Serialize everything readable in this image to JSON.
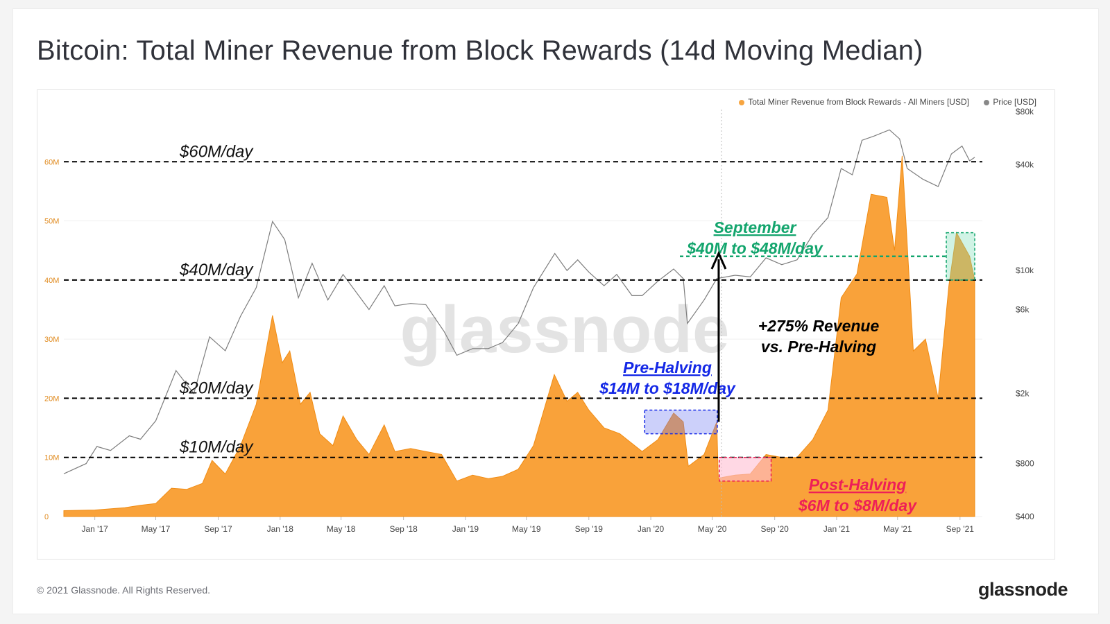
{
  "title": "Bitcoin: Total Miner Revenue from Block Rewards (14d Moving Median)",
  "footer": "© 2021 Glassnode. All Rights Reserved.",
  "brand": "glassnode",
  "watermark": "glassnode",
  "colors": {
    "revenue": "#f7931a",
    "price": "#888888",
    "pre": "#1428e6",
    "post": "#ee1f57",
    "sept": "#13a56d"
  },
  "legend": {
    "revenue": "Total Miner Revenue from Block Rewards - All Miners [USD]",
    "price": "Price [USD]"
  },
  "annotations": {
    "l60": "$60M/day",
    "l40": "$40M/day",
    "l20": "$20M/day",
    "l10": "$10M/day",
    "sept_title": "September",
    "sept_range": "$40M to $48M/day",
    "pre_title": "Pre-Halving",
    "pre_range": "$14M to $18M/day",
    "post_title": "Post-Halving",
    "post_range": "$6M to $8M/day",
    "growth1": "+275% Revenue",
    "growth2": "vs. Pre-Halving"
  },
  "chart_data": {
    "type": "area",
    "x_ticks": [
      "Jan '17",
      "May '17",
      "Sep '17",
      "Jan '18",
      "May '18",
      "Sep '18",
      "Jan '19",
      "May '19",
      "Sep '19",
      "Jan '20",
      "May '20",
      "Sep '20",
      "Jan '21",
      "May '21",
      "Sep '21"
    ],
    "y_left_ticks": [
      "0",
      "10M",
      "20M",
      "30M",
      "40M",
      "50M",
      "60M"
    ],
    "y_right_ticks": [
      "$400",
      "$800",
      "$2k",
      "$6k",
      "$10k",
      "$40k",
      "$80k"
    ],
    "ylim_left": [
      0,
      70000000
    ],
    "y_right_scale": "log",
    "xlim": [
      "2016-11-01",
      "2021-10-15"
    ],
    "reference_lines": [
      60000000,
      40000000,
      20000000,
      10000000
    ],
    "series": [
      {
        "name": "Total Miner Revenue from Block Rewards - All Miners [USD]",
        "axis": "left",
        "points": [
          [
            "2016-11-01",
            1000000
          ],
          [
            "2017-01-01",
            1100000
          ],
          [
            "2017-03-01",
            1500000
          ],
          [
            "2017-04-01",
            1900000
          ],
          [
            "2017-05-01",
            2200000
          ],
          [
            "2017-06-01",
            4800000
          ],
          [
            "2017-07-01",
            4600000
          ],
          [
            "2017-08-01",
            5600000
          ],
          [
            "2017-08-20",
            9500000
          ],
          [
            "2017-09-15",
            7200000
          ],
          [
            "2017-10-15",
            12000000
          ],
          [
            "2017-11-15",
            19000000
          ],
          [
            "2017-12-17",
            34000000
          ],
          [
            "2018-01-05",
            26000000
          ],
          [
            "2018-01-20",
            28000000
          ],
          [
            "2018-02-10",
            19000000
          ],
          [
            "2018-03-01",
            21000000
          ],
          [
            "2018-03-20",
            14000000
          ],
          [
            "2018-04-15",
            12000000
          ],
          [
            "2018-05-05",
            17000000
          ],
          [
            "2018-06-01",
            13000000
          ],
          [
            "2018-06-25",
            10500000
          ],
          [
            "2018-07-25",
            15500000
          ],
          [
            "2018-08-15",
            11000000
          ],
          [
            "2018-09-15",
            11500000
          ],
          [
            "2018-10-15",
            11000000
          ],
          [
            "2018-11-15",
            10500000
          ],
          [
            "2018-12-15",
            6000000
          ],
          [
            "2019-01-15",
            7000000
          ],
          [
            "2019-02-15",
            6400000
          ],
          [
            "2019-03-15",
            6800000
          ],
          [
            "2019-04-15",
            8000000
          ],
          [
            "2019-05-15",
            12000000
          ],
          [
            "2019-06-25",
            24000000
          ],
          [
            "2019-07-20",
            19500000
          ],
          [
            "2019-08-10",
            21000000
          ],
          [
            "2019-09-01",
            18000000
          ],
          [
            "2019-10-01",
            15000000
          ],
          [
            "2019-11-01",
            14000000
          ],
          [
            "2019-12-15",
            11000000
          ],
          [
            "2020-01-15",
            13000000
          ],
          [
            "2020-02-15",
            17500000
          ],
          [
            "2020-03-05",
            16000000
          ],
          [
            "2020-03-15",
            8500000
          ],
          [
            "2020-04-15",
            10500000
          ],
          [
            "2020-05-10",
            16000000
          ],
          [
            "2020-05-13",
            6500000
          ],
          [
            "2020-06-15",
            7000000
          ],
          [
            "2020-07-15",
            7200000
          ],
          [
            "2020-08-15",
            10500000
          ],
          [
            "2020-09-15",
            10000000
          ],
          [
            "2020-10-15",
            10000000
          ],
          [
            "2020-11-15",
            13000000
          ],
          [
            "2020-12-15",
            18000000
          ],
          [
            "2021-01-10",
            37000000
          ],
          [
            "2021-02-10",
            41000000
          ],
          [
            "2021-03-10",
            54500000
          ],
          [
            "2021-04-10",
            54000000
          ],
          [
            "2021-04-25",
            45000000
          ],
          [
            "2021-05-10",
            61000000
          ],
          [
            "2021-06-01",
            28000000
          ],
          [
            "2021-06-25",
            30000000
          ],
          [
            "2021-07-20",
            20000000
          ],
          [
            "2021-08-10",
            39000000
          ],
          [
            "2021-08-25",
            48000000
          ],
          [
            "2021-09-20",
            44000000
          ],
          [
            "2021-09-30",
            40000000
          ]
        ]
      },
      {
        "name": "Price [USD]",
        "axis": "right",
        "points": [
          [
            "2016-11-01",
            700
          ],
          [
            "2016-12-15",
            800
          ],
          [
            "2017-01-05",
            1000
          ],
          [
            "2017-02-01",
            950
          ],
          [
            "2017-03-10",
            1150
          ],
          [
            "2017-04-01",
            1100
          ],
          [
            "2017-05-01",
            1400
          ],
          [
            "2017-06-10",
            2700
          ],
          [
            "2017-07-15",
            2000
          ],
          [
            "2017-08-15",
            4200
          ],
          [
            "2017-09-15",
            3500
          ],
          [
            "2017-10-15",
            5500
          ],
          [
            "2017-11-15",
            8000
          ],
          [
            "2017-12-17",
            19000
          ],
          [
            "2018-01-10",
            15000
          ],
          [
            "2018-02-06",
            7000
          ],
          [
            "2018-03-05",
            11000
          ],
          [
            "2018-04-05",
            6800
          ],
          [
            "2018-05-05",
            9500
          ],
          [
            "2018-06-25",
            6000
          ],
          [
            "2018-07-25",
            8200
          ],
          [
            "2018-08-15",
            6300
          ],
          [
            "2018-09-15",
            6500
          ],
          [
            "2018-10-15",
            6400
          ],
          [
            "2018-11-20",
            4500
          ],
          [
            "2018-12-15",
            3300
          ],
          [
            "2019-01-15",
            3600
          ],
          [
            "2019-02-15",
            3600
          ],
          [
            "2019-03-15",
            3900
          ],
          [
            "2019-04-15",
            5000
          ],
          [
            "2019-05-15",
            8000
          ],
          [
            "2019-06-26",
            12500
          ],
          [
            "2019-07-20",
            10000
          ],
          [
            "2019-08-10",
            11500
          ],
          [
            "2019-09-01",
            9800
          ],
          [
            "2019-10-01",
            8200
          ],
          [
            "2019-10-26",
            9500
          ],
          [
            "2019-11-25",
            7200
          ],
          [
            "2019-12-15",
            7200
          ],
          [
            "2020-01-15",
            8700
          ],
          [
            "2020-02-15",
            10200
          ],
          [
            "2020-03-05",
            9000
          ],
          [
            "2020-03-13",
            5000
          ],
          [
            "2020-04-15",
            6800
          ],
          [
            "2020-05-10",
            9000
          ],
          [
            "2020-06-15",
            9400
          ],
          [
            "2020-07-15",
            9200
          ],
          [
            "2020-08-15",
            11800
          ],
          [
            "2020-09-15",
            10800
          ],
          [
            "2020-10-15",
            11500
          ],
          [
            "2020-11-15",
            16000
          ],
          [
            "2020-12-15",
            20000
          ],
          [
            "2021-01-10",
            38000
          ],
          [
            "2021-02-01",
            35000
          ],
          [
            "2021-02-20",
            55000
          ],
          [
            "2021-03-15",
            58000
          ],
          [
            "2021-04-15",
            63000
          ],
          [
            "2021-05-05",
            56000
          ],
          [
            "2021-05-20",
            38000
          ],
          [
            "2021-06-20",
            33000
          ],
          [
            "2021-07-20",
            30000
          ],
          [
            "2021-08-15",
            46000
          ],
          [
            "2021-09-05",
            51000
          ],
          [
            "2021-09-20",
            42000
          ],
          [
            "2021-09-30",
            44000
          ]
        ]
      }
    ]
  }
}
